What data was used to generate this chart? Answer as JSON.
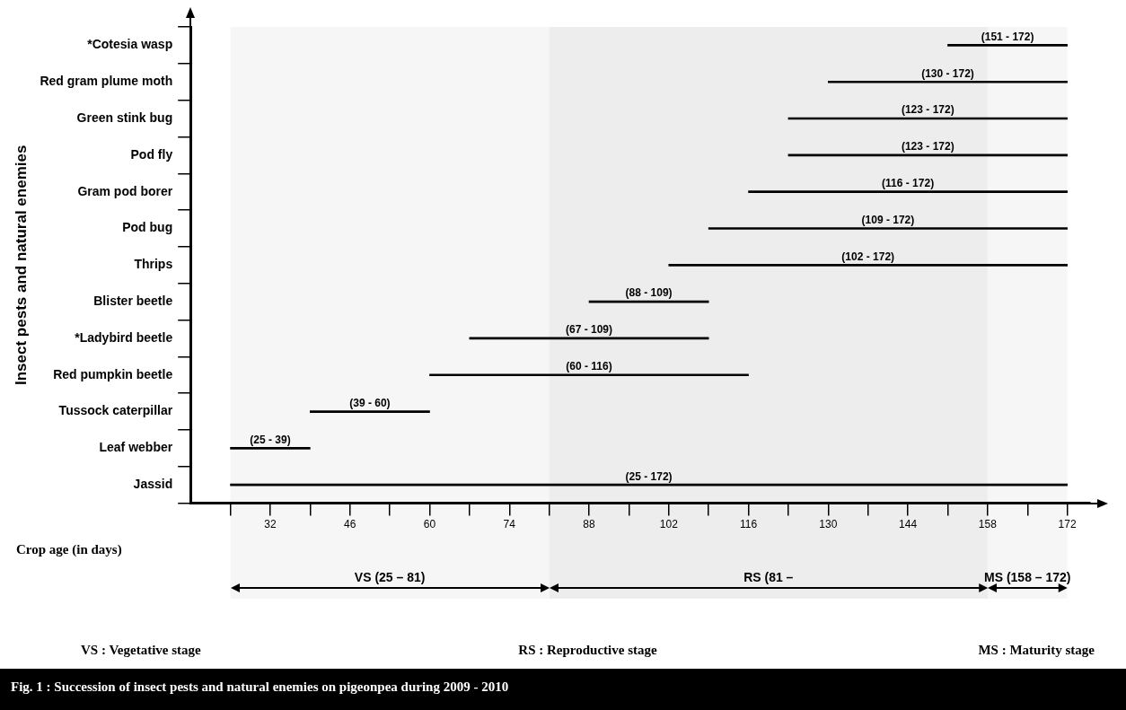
{
  "chart_data": {
    "type": "bar",
    "orientation": "horizontal",
    "title": "Fig. 1 : Succession of insect pests and natural enemies on pigeonpea during 2009 - 2010",
    "xlabel": "Crop age (in days)",
    "ylabel": "Insect pests and natural enemies",
    "categories": [
      "*Cotesia wasp",
      "Red gram plume moth",
      "Green stink bug",
      "Pod fly",
      "Gram pod borer",
      "Pod bug",
      "Thrips",
      "Blister beetle",
      "*Ladybird beetle",
      "Red pumpkin beetle",
      "Tussock caterpillar",
      "Leaf webber",
      "Jassid"
    ],
    "base": [
      151,
      130,
      123,
      123,
      116,
      109,
      102,
      88,
      67,
      60,
      39,
      25,
      25
    ],
    "values": [
      21,
      42,
      49,
      49,
      56,
      63,
      70,
      21,
      42,
      56,
      21,
      14,
      147
    ],
    "value_labels": [
      "(151 - 172)",
      "(130 - 172)",
      "(123 - 172)",
      "(123 - 172)",
      "(116 - 172)",
      "(109 - 172)",
      "(102 - 172)",
      "(88 - 109)",
      "(67 - 109)",
      "(60 - 116)",
      "(39 - 60)",
      "(25 - 39)",
      "(25 - 172)"
    ],
    "color": "#000000",
    "xlim": [
      18,
      176
    ],
    "xticks": [
      {
        "value": 25,
        "label": null
      },
      32,
      {
        "value": 39,
        "label": null
      },
      46,
      {
        "value": 53,
        "label": null
      },
      60,
      {
        "value": 67,
        "label": null
      },
      74,
      {
        "value": 81,
        "label": null
      },
      88,
      {
        "value": 95,
        "label": null
      },
      102,
      {
        "value": 109,
        "label": null
      },
      116,
      {
        "value": 123,
        "label": null
      },
      130,
      {
        "value": 137,
        "label": null
      },
      144,
      {
        "value": 151,
        "label": null
      },
      158,
      {
        "value": 165,
        "label": null
      },
      172
    ],
    "bands": [
      {
        "axis": "x",
        "from": 25,
        "to": 81,
        "label": "VS (25 – 81)"
      },
      {
        "axis": "x",
        "from": 81,
        "to": 158,
        "label": "RS (81 –"
      },
      {
        "axis": "x",
        "from": 158,
        "to": 172,
        "label": "MS (158 – 172)"
      }
    ],
    "annotations": [
      "VS : Vegetative stage",
      "RS : Reproductive stage",
      "MS : Maturity stage"
    ]
  }
}
